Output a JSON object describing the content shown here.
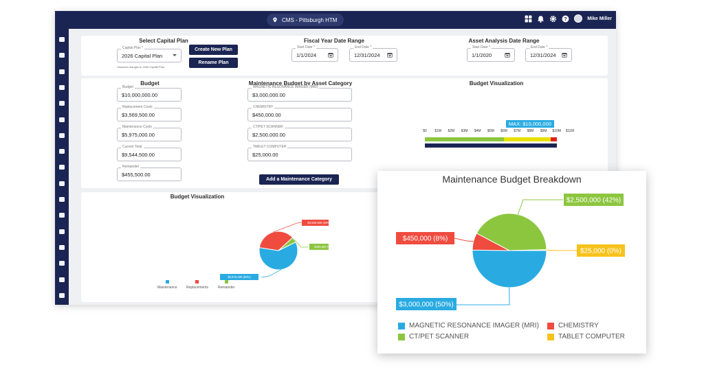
{
  "topbar": {
    "location": "CMS - Pittsburgh HTM",
    "user_name": "Mike Miller",
    "icons": [
      "grid-icon",
      "bell-icon",
      "gear-icon",
      "help-icon"
    ]
  },
  "sidebar": {
    "icons": [
      "folder-icon",
      "tag-icon",
      "inbox-icon",
      "layers-icon",
      "chat-icon",
      "calendar-icon",
      "book-icon",
      "copy-icon",
      "building-icon",
      "clipboard-icon",
      "users-icon",
      "document-icon",
      "cart-icon",
      "list-icon",
      "calendar-icon",
      "folder-icon",
      "chat-icon"
    ]
  },
  "capital_plan": {
    "title": "Select Capital Plan",
    "plan_label": "Capital Plan *",
    "plan_value": "2026 Capital Plan",
    "note": "Unsaved changes in 2026 Capital Plan.",
    "create_button": "Create New Plan",
    "rename_button": "Rename Plan"
  },
  "fiscal_range": {
    "title": "Fiscal Year Date Range",
    "start_label": "Start Date *",
    "start_value": "1/1/2024",
    "end_label": "End Date *",
    "end_value": "12/31/2024"
  },
  "asset_range": {
    "title": "Asset Analysis Date Range",
    "start_label": "Start Date *",
    "start_value": "1/1/2020",
    "end_label": "End Date *",
    "end_value": "12/31/2024"
  },
  "budget": {
    "title": "Budget",
    "fields": [
      {
        "label": "Budget",
        "value": "$10,000,000.00"
      },
      {
        "label": "Replacement Costs",
        "value": "$3,569,500.00"
      },
      {
        "label": "Maintenance Costs",
        "value": "$5,975,000.00"
      },
      {
        "label": "Current Total",
        "value": "$9,544,500.00"
      },
      {
        "label": "Remainder",
        "value": "$455,500.00"
      }
    ]
  },
  "maint_by_category": {
    "title": "Maintenance Budget by Asset Category",
    "fields": [
      {
        "label": "MAGNETIC RESONANCE IMAGER (MRI)",
        "value": "$3,000,000.00"
      },
      {
        "label": "CHEMISTRY",
        "value": "$450,000.00"
      },
      {
        "label": "CT/PET SCANNER",
        "value": "$2,500,000.00"
      },
      {
        "label": "TABLET COMPUTER",
        "value": "$25,000.00"
      }
    ],
    "add_button": "Add a Maintenance Category"
  },
  "budget_viz_bar": {
    "title": "Budget Visualization",
    "max_label": "MAX: $10,000,000",
    "tick_labels": [
      "$0",
      "$1M",
      "$2M",
      "$3M",
      "$4M",
      "$5M",
      "$6M",
      "$7M",
      "$8M",
      "$9M",
      "$10M",
      "$11M"
    ],
    "max_value": 11000000,
    "segments": [
      {
        "name": "Maintenance",
        "value": 5975000,
        "color": "#8cc63f"
      },
      {
        "name": "Replacements",
        "value": 3569500,
        "color": "#e8e000"
      },
      {
        "name": "Remainder",
        "value": 455500,
        "color": "#e02020"
      }
    ],
    "total_value": 10000000,
    "total_color": "#1b2553"
  },
  "budget_viz_pie": {
    "title": "Budget Visualization",
    "labels": {
      "maintenance": "$5,975,000 (60%)",
      "replacements": "$3,569,500 (36%)",
      "remainder": "$455,500 (5%)"
    },
    "legend": [
      "Maintenance",
      "Replacements",
      "Remainder"
    ]
  },
  "breakdown_card": {
    "title": "Maintenance Budget Breakdown",
    "slice_labels": {
      "mri": "$3,000,000 (50%)",
      "chemistry": "$450,000 (8%)",
      "ct_pet": "$2,500,000 (42%)",
      "tablet": "$25,000 (0%)"
    },
    "legend": [
      "MAGNETIC RESONANCE IMAGER (MRI)",
      "CHEMISTRY",
      "CT/PET SCANNER",
      "TABLET COMPUTER"
    ]
  },
  "chart_data": [
    {
      "type": "bar",
      "orientation": "horizontal-stacked",
      "title": "Budget Visualization",
      "categories": [
        "Budget"
      ],
      "series": [
        {
          "name": "Maintenance",
          "values": [
            5975000
          ]
        },
        {
          "name": "Replacements",
          "values": [
            3569500
          ]
        },
        {
          "name": "Remainder",
          "values": [
            455500
          ]
        }
      ],
      "xlim": [
        0,
        11000000
      ],
      "annotation": "MAX: $10,000,000",
      "tick_labels": [
        "$0",
        "$1M",
        "$2M",
        "$3M",
        "$4M",
        "$5M",
        "$6M",
        "$7M",
        "$8M",
        "$9M",
        "$10M",
        "$11M"
      ]
    },
    {
      "type": "pie",
      "title": "Budget Visualization",
      "categories": [
        "Maintenance",
        "Replacements",
        "Remainder"
      ],
      "values": [
        5975000,
        3569500,
        455500
      ],
      "colors": [
        "#29abe2",
        "#ef4b3f",
        "#8cc63f"
      ],
      "labels": [
        "$5,975,000 (60%)",
        "$3,569,500 (36%)",
        "$455,500 (5%)"
      ],
      "legend_placement": "bottom"
    },
    {
      "type": "pie",
      "title": "Maintenance Budget Breakdown",
      "categories": [
        "MAGNETIC RESONANCE IMAGER (MRI)",
        "CHEMISTRY",
        "CT/PET SCANNER",
        "TABLET COMPUTER"
      ],
      "values": [
        3000000,
        450000,
        2500000,
        25000
      ],
      "colors": [
        "#29abe2",
        "#ef4b3f",
        "#8cc63f",
        "#f7c21c"
      ],
      "labels": [
        "$3,000,000 (50%)",
        "$450,000 (8%)",
        "$2,500,000 (42%)",
        "$25,000 (0%)"
      ],
      "legend_placement": "bottom"
    }
  ]
}
